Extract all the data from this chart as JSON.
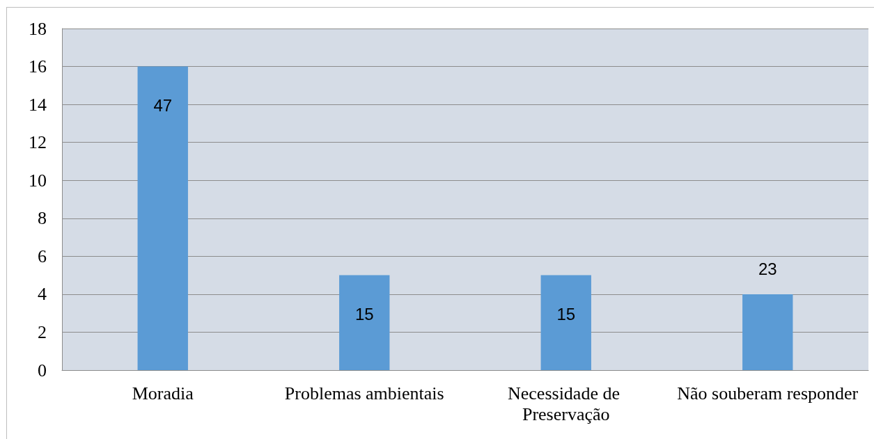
{
  "chart_data": {
    "type": "bar",
    "categories": [
      "Moradia",
      "Problemas ambientais",
      "Necessidade de Preservação",
      "Não souberam responder"
    ],
    "values": [
      16,
      5,
      5,
      4
    ],
    "color": "#5b9bd5",
    "annotations": [
      "47",
      "15",
      "15",
      "23"
    ],
    "ylim": [
      0,
      18
    ],
    "yticks": [
      0,
      2,
      4,
      6,
      8,
      10,
      12,
      14,
      16,
      18
    ],
    "grid": "y"
  }
}
